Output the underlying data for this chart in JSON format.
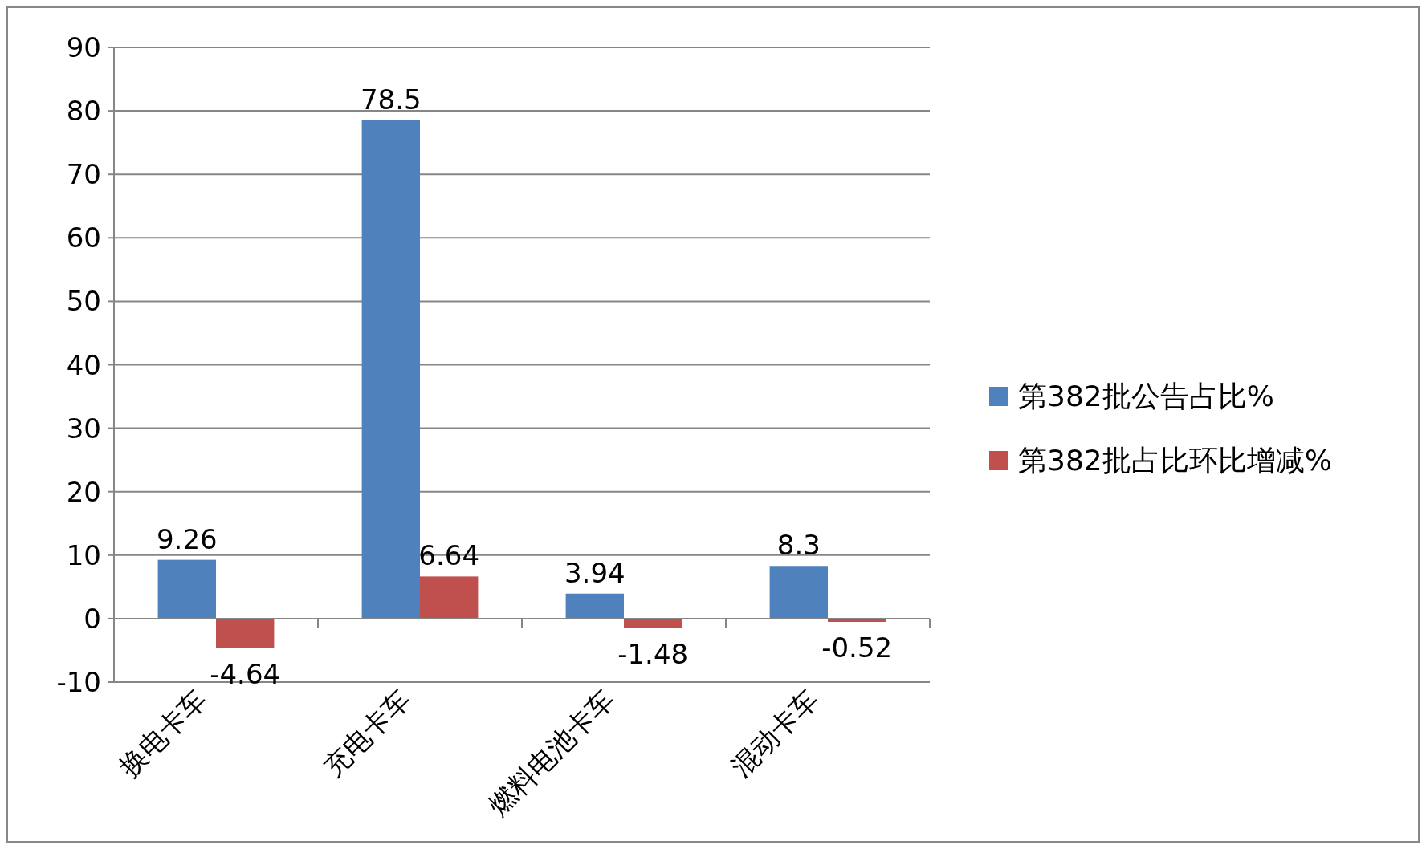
{
  "chart_data": {
    "type": "bar",
    "categories": [
      "换电卡车",
      "充电卡车",
      "燃料电池卡车",
      "混动卡车"
    ],
    "series": [
      {
        "name": "第382批公告占比%",
        "color": "#4f81bd",
        "values": [
          9.26,
          78.5,
          3.94,
          8.3
        ]
      },
      {
        "name": "第382批占比环比增减%",
        "color": "#c0504d",
        "values": [
          -4.64,
          6.64,
          -1.48,
          -0.52
        ]
      }
    ],
    "ylim": [
      -10,
      90
    ],
    "yticks": [
      -10,
      0,
      10,
      20,
      30,
      40,
      50,
      60,
      70,
      80,
      90
    ],
    "grid": "y",
    "legend": "right",
    "data_labels": true
  }
}
